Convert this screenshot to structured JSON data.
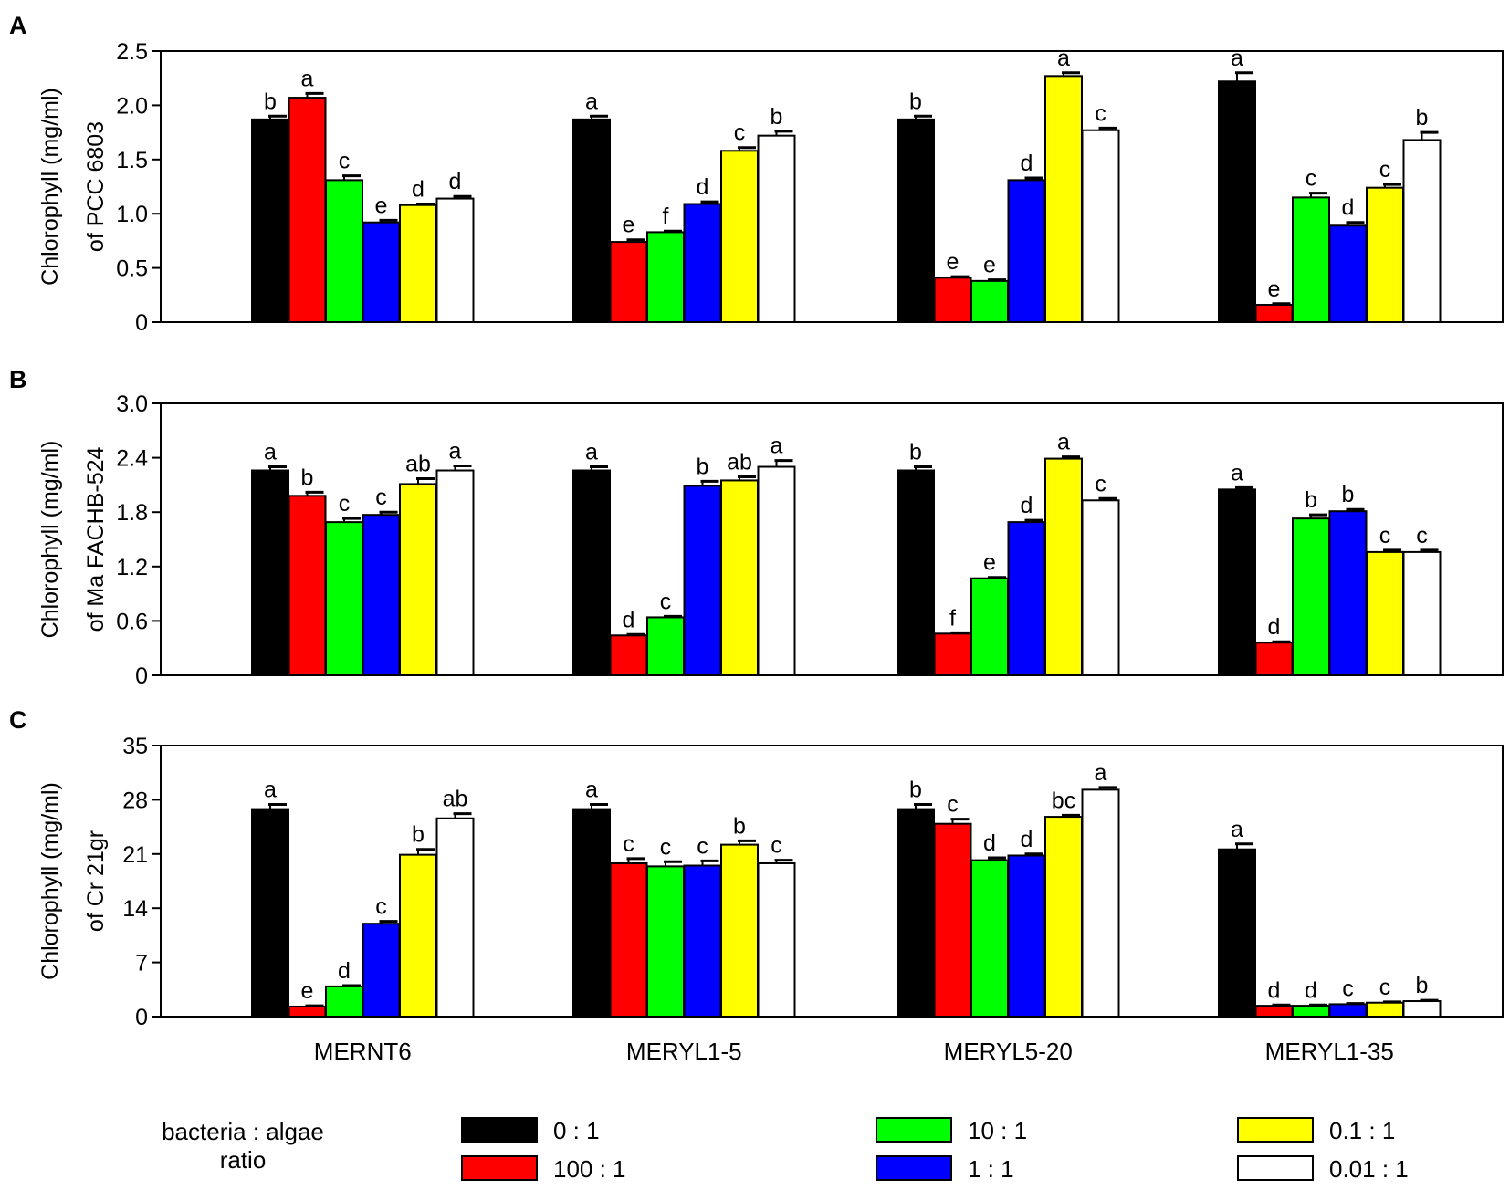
{
  "colors": {
    "0 : 1": "#000000",
    "100 : 1": "#ff0000",
    "10 : 1": "#00ff00",
    "1 : 1": "#0000ff",
    "0.1 : 1": "#ffff00",
    "0.01 : 1": "#ffffff"
  },
  "legend": {
    "title_line1": "bacteria : algae",
    "title_line2": "ratio",
    "items": [
      "0 : 1",
      "100 : 1",
      "10 : 1",
      "1 : 1",
      "0.1 : 1",
      "0.01 : 1"
    ]
  },
  "chart_data": [
    {
      "panel": "A",
      "type": "bar",
      "ylabel_line1": "Chlorophyll  (mg/ml)",
      "ylabel_line2": "of PCC 6803",
      "ylim": [
        0,
        2.5
      ],
      "yticks": [
        "0",
        "0.5",
        "1.0",
        "1.5",
        "2.0",
        "2.5"
      ],
      "ytick_values": [
        0,
        0.5,
        1.0,
        1.5,
        2.0,
        2.5
      ],
      "categories": [
        "MERNT6",
        "MERYL1-5",
        "MERYL5-20",
        "MERYL1-35"
      ],
      "series": [
        {
          "name": "0 : 1",
          "values": [
            1.87,
            1.87,
            1.87,
            2.22
          ],
          "errors": [
            0.03,
            0.03,
            0.03,
            0.08
          ],
          "letters": [
            "b",
            "a",
            "b",
            "a"
          ]
        },
        {
          "name": "100 : 1",
          "values": [
            2.07,
            0.74,
            0.41,
            0.16
          ],
          "errors": [
            0.04,
            0.02,
            0.01,
            0.01
          ],
          "letters": [
            "a",
            "e",
            "e",
            "e"
          ]
        },
        {
          "name": "10 : 1",
          "values": [
            1.31,
            0.83,
            0.38,
            1.15
          ],
          "errors": [
            0.04,
            0.01,
            0.01,
            0.04
          ],
          "letters": [
            "c",
            "f",
            "e",
            "c"
          ]
        },
        {
          "name": "1 : 1",
          "values": [
            0.92,
            1.09,
            1.31,
            0.89
          ],
          "errors": [
            0.02,
            0.02,
            0.02,
            0.03
          ],
          "letters": [
            "e",
            "d",
            "d",
            "d"
          ]
        },
        {
          "name": "0.1 : 1",
          "values": [
            1.08,
            1.58,
            2.27,
            1.24
          ],
          "errors": [
            0.01,
            0.03,
            0.03,
            0.03
          ],
          "letters": [
            "d",
            "c",
            "a",
            "c"
          ]
        },
        {
          "name": "0.01 : 1",
          "values": [
            1.14,
            1.72,
            1.77,
            1.68
          ],
          "errors": [
            0.02,
            0.04,
            0.02,
            0.07
          ],
          "letters": [
            "d",
            "b",
            "c",
            "b"
          ]
        }
      ]
    },
    {
      "panel": "B",
      "type": "bar",
      "ylabel_line1": "Chlorophyll  (mg/ml)",
      "ylabel_line2": "of Ma FACHB-524",
      "ylim": [
        0,
        3.0
      ],
      "yticks": [
        "0",
        "0.6",
        "1.2",
        "1.8",
        "2.4",
        "3.0"
      ],
      "ytick_values": [
        0,
        0.6,
        1.2,
        1.8,
        2.4,
        3.0
      ],
      "categories": [
        "MERNT6",
        "MERYL1-5",
        "MERYL5-20",
        "MERYL1-35"
      ],
      "series": [
        {
          "name": "0 : 1",
          "values": [
            2.26,
            2.26,
            2.26,
            2.05
          ],
          "errors": [
            0.04,
            0.04,
            0.04,
            0.02
          ],
          "letters": [
            "a",
            "a",
            "b",
            "a"
          ]
        },
        {
          "name": "100 : 1",
          "values": [
            1.98,
            0.44,
            0.46,
            0.36
          ],
          "errors": [
            0.04,
            0.01,
            0.01,
            0.01
          ],
          "letters": [
            "b",
            "d",
            "f",
            "d"
          ]
        },
        {
          "name": "10 : 1",
          "values": [
            1.69,
            0.64,
            1.07,
            1.73
          ],
          "errors": [
            0.04,
            0.01,
            0.01,
            0.04
          ],
          "letters": [
            "c",
            "c",
            "e",
            "b"
          ]
        },
        {
          "name": "1 : 1",
          "values": [
            1.77,
            2.09,
            1.69,
            1.81
          ],
          "errors": [
            0.03,
            0.05,
            0.02,
            0.02
          ],
          "letters": [
            "c",
            "b",
            "d",
            "b"
          ]
        },
        {
          "name": "0.1 : 1",
          "values": [
            2.11,
            2.15,
            2.39,
            1.36
          ],
          "errors": [
            0.06,
            0.04,
            0.02,
            0.02
          ],
          "letters": [
            "ab",
            "ab",
            "a",
            "c"
          ]
        },
        {
          "name": "0.01 : 1",
          "values": [
            2.26,
            2.3,
            1.93,
            1.36
          ],
          "errors": [
            0.05,
            0.07,
            0.02,
            0.02
          ],
          "letters": [
            "a",
            "a",
            "c",
            "c"
          ]
        }
      ]
    },
    {
      "panel": "C",
      "type": "bar",
      "ylabel_line1": "Chlorophyll  (mg/ml)",
      "ylabel_line2": "of Cr 21gr",
      "ylim": [
        0,
        35
      ],
      "yticks": [
        "0",
        "7",
        "14",
        "21",
        "28",
        "35"
      ],
      "ytick_values": [
        0,
        7,
        14,
        21,
        28,
        35
      ],
      "categories": [
        "MERNT6",
        "MERYL1-5",
        "MERYL5-20",
        "MERYL1-35"
      ],
      "series": [
        {
          "name": "0 : 1",
          "values": [
            26.8,
            26.8,
            26.8,
            21.6
          ],
          "errors": [
            0.6,
            0.6,
            0.6,
            0.7
          ],
          "letters": [
            "a",
            "a",
            "b",
            "a"
          ]
        },
        {
          "name": "100 : 1",
          "values": [
            1.3,
            19.8,
            24.9,
            1.4
          ],
          "errors": [
            0.1,
            0.6,
            0.6,
            0.1
          ],
          "letters": [
            "e",
            "c",
            "c",
            "d"
          ]
        },
        {
          "name": "10 : 1",
          "values": [
            3.9,
            19.4,
            20.2,
            1.4
          ],
          "errors": [
            0.1,
            0.6,
            0.3,
            0.1
          ],
          "letters": [
            "d",
            "c",
            "d",
            "d"
          ]
        },
        {
          "name": "1 : 1",
          "values": [
            12.0,
            19.5,
            20.8,
            1.6
          ],
          "errors": [
            0.3,
            0.6,
            0.2,
            0.1
          ],
          "letters": [
            "c",
            "c",
            "d",
            "c"
          ]
        },
        {
          "name": "0.1 : 1",
          "values": [
            20.9,
            22.2,
            25.8,
            1.8
          ],
          "errors": [
            0.7,
            0.5,
            0.2,
            0.1
          ],
          "letters": [
            "b",
            "b",
            "bc",
            "c"
          ]
        },
        {
          "name": "0.01 : 1",
          "values": [
            25.6,
            19.8,
            29.3,
            2.0
          ],
          "errors": [
            0.6,
            0.4,
            0.3,
            0.1
          ],
          "letters": [
            "ab",
            "c",
            "a",
            "b"
          ]
        }
      ]
    }
  ]
}
